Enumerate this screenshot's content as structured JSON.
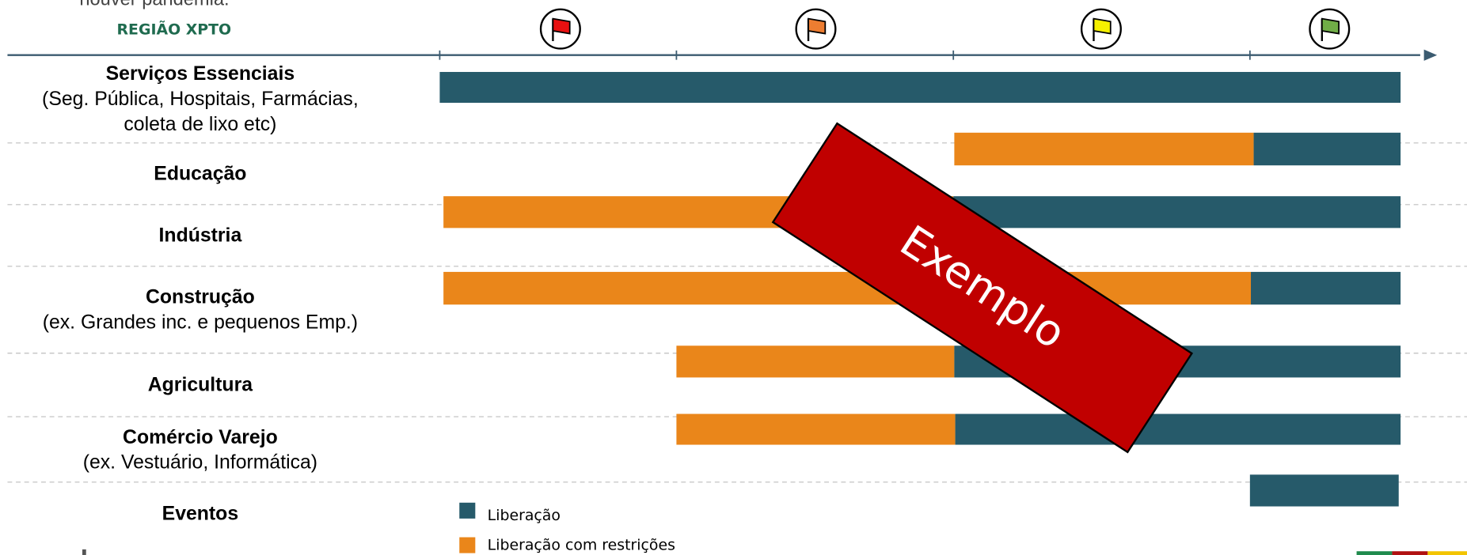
{
  "header": {
    "note_fragment": "houver pandemia.",
    "region": "REGIÃO XPTO"
  },
  "rows": [
    {
      "lines": [
        "Serviços Essenciais",
        "(Seg. Pública, Hospitais, Farmácias,",
        "coleta de lixo etc)"
      ]
    },
    {
      "lines": [
        "Educação"
      ]
    },
    {
      "lines": [
        "Indústria"
      ]
    },
    {
      "lines": [
        "Construção",
        "(ex. Grandes inc. e pequenos Emp.)"
      ]
    },
    {
      "lines": [
        "Agricultura"
      ]
    },
    {
      "lines": [
        "Comércio Varejo",
        "(ex. Vestuário, Informática)"
      ]
    },
    {
      "lines": [
        "Eventos"
      ]
    }
  ],
  "legend": [
    "Liberação",
    "Liberação com restrições"
  ],
  "stamp": "Exemplo"
}
